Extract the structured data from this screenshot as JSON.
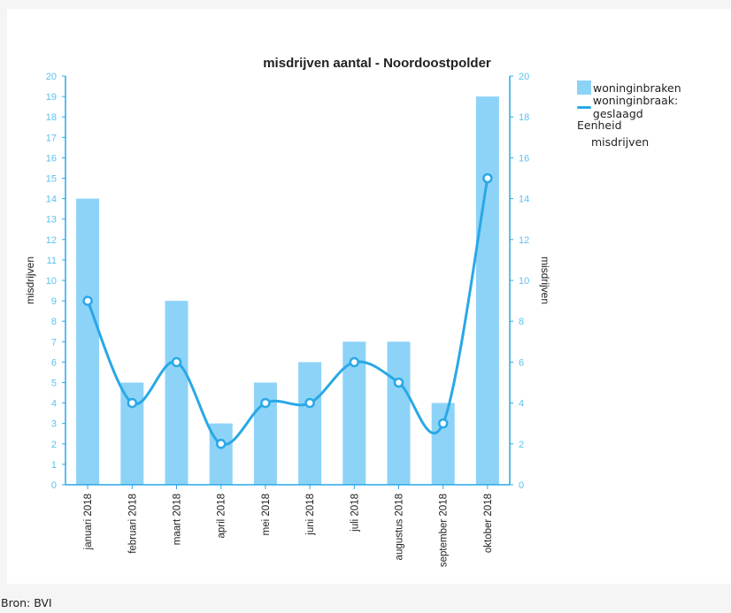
{
  "chart_data": {
    "type": "bar",
    "title": "misdrijven aantal - Noordoostpolder",
    "categories": [
      "januari 2018",
      "februari 2018",
      "maart 2018",
      "april 2018",
      "mei 2018",
      "juni 2018",
      "juli 2018",
      "augustus 2018",
      "september 2018",
      "oktober 2018"
    ],
    "series": [
      {
        "name": "woninginbraken",
        "kind": "bar",
        "axis": "left",
        "color": "#8dd3f8",
        "values": [
          14,
          5,
          9,
          3,
          5,
          6,
          7,
          7,
          4,
          19
        ]
      },
      {
        "name": "woninginbraak: geslaagd",
        "kind": "line",
        "axis": "right",
        "color": "#29a8e6",
        "values": [
          9,
          4,
          6,
          2,
          4,
          4,
          6,
          5,
          3,
          15
        ]
      }
    ],
    "ylabel_left": "misdrijven",
    "ylabel_right": "misdrijven",
    "ylim_left": [
      0,
      20
    ],
    "yticks_left": [
      0,
      1,
      2,
      3,
      4,
      5,
      6,
      7,
      8,
      9,
      10,
      11,
      12,
      13,
      14,
      15,
      16,
      17,
      18,
      19,
      20
    ],
    "ylim_right": [
      0,
      20
    ],
    "yticks_right": [
      0,
      2,
      4,
      6,
      8,
      10,
      12,
      14,
      16,
      18,
      20
    ],
    "grid": false,
    "legend_position": "right"
  },
  "legend": {
    "items": [
      {
        "label": "woninginbraken",
        "color": "#8dd3f8"
      },
      {
        "label": "woninginbraak: geslaagd",
        "color": "#29a8e6"
      }
    ],
    "unit_title": "Eenheid",
    "unit_value": "misdrijven"
  },
  "source": "Bron: BVI",
  "colors": {
    "axis": "#29a8e6",
    "tick_label": "#5cc0f0",
    "title": "#222222",
    "plot_bg": "#ffffff"
  }
}
